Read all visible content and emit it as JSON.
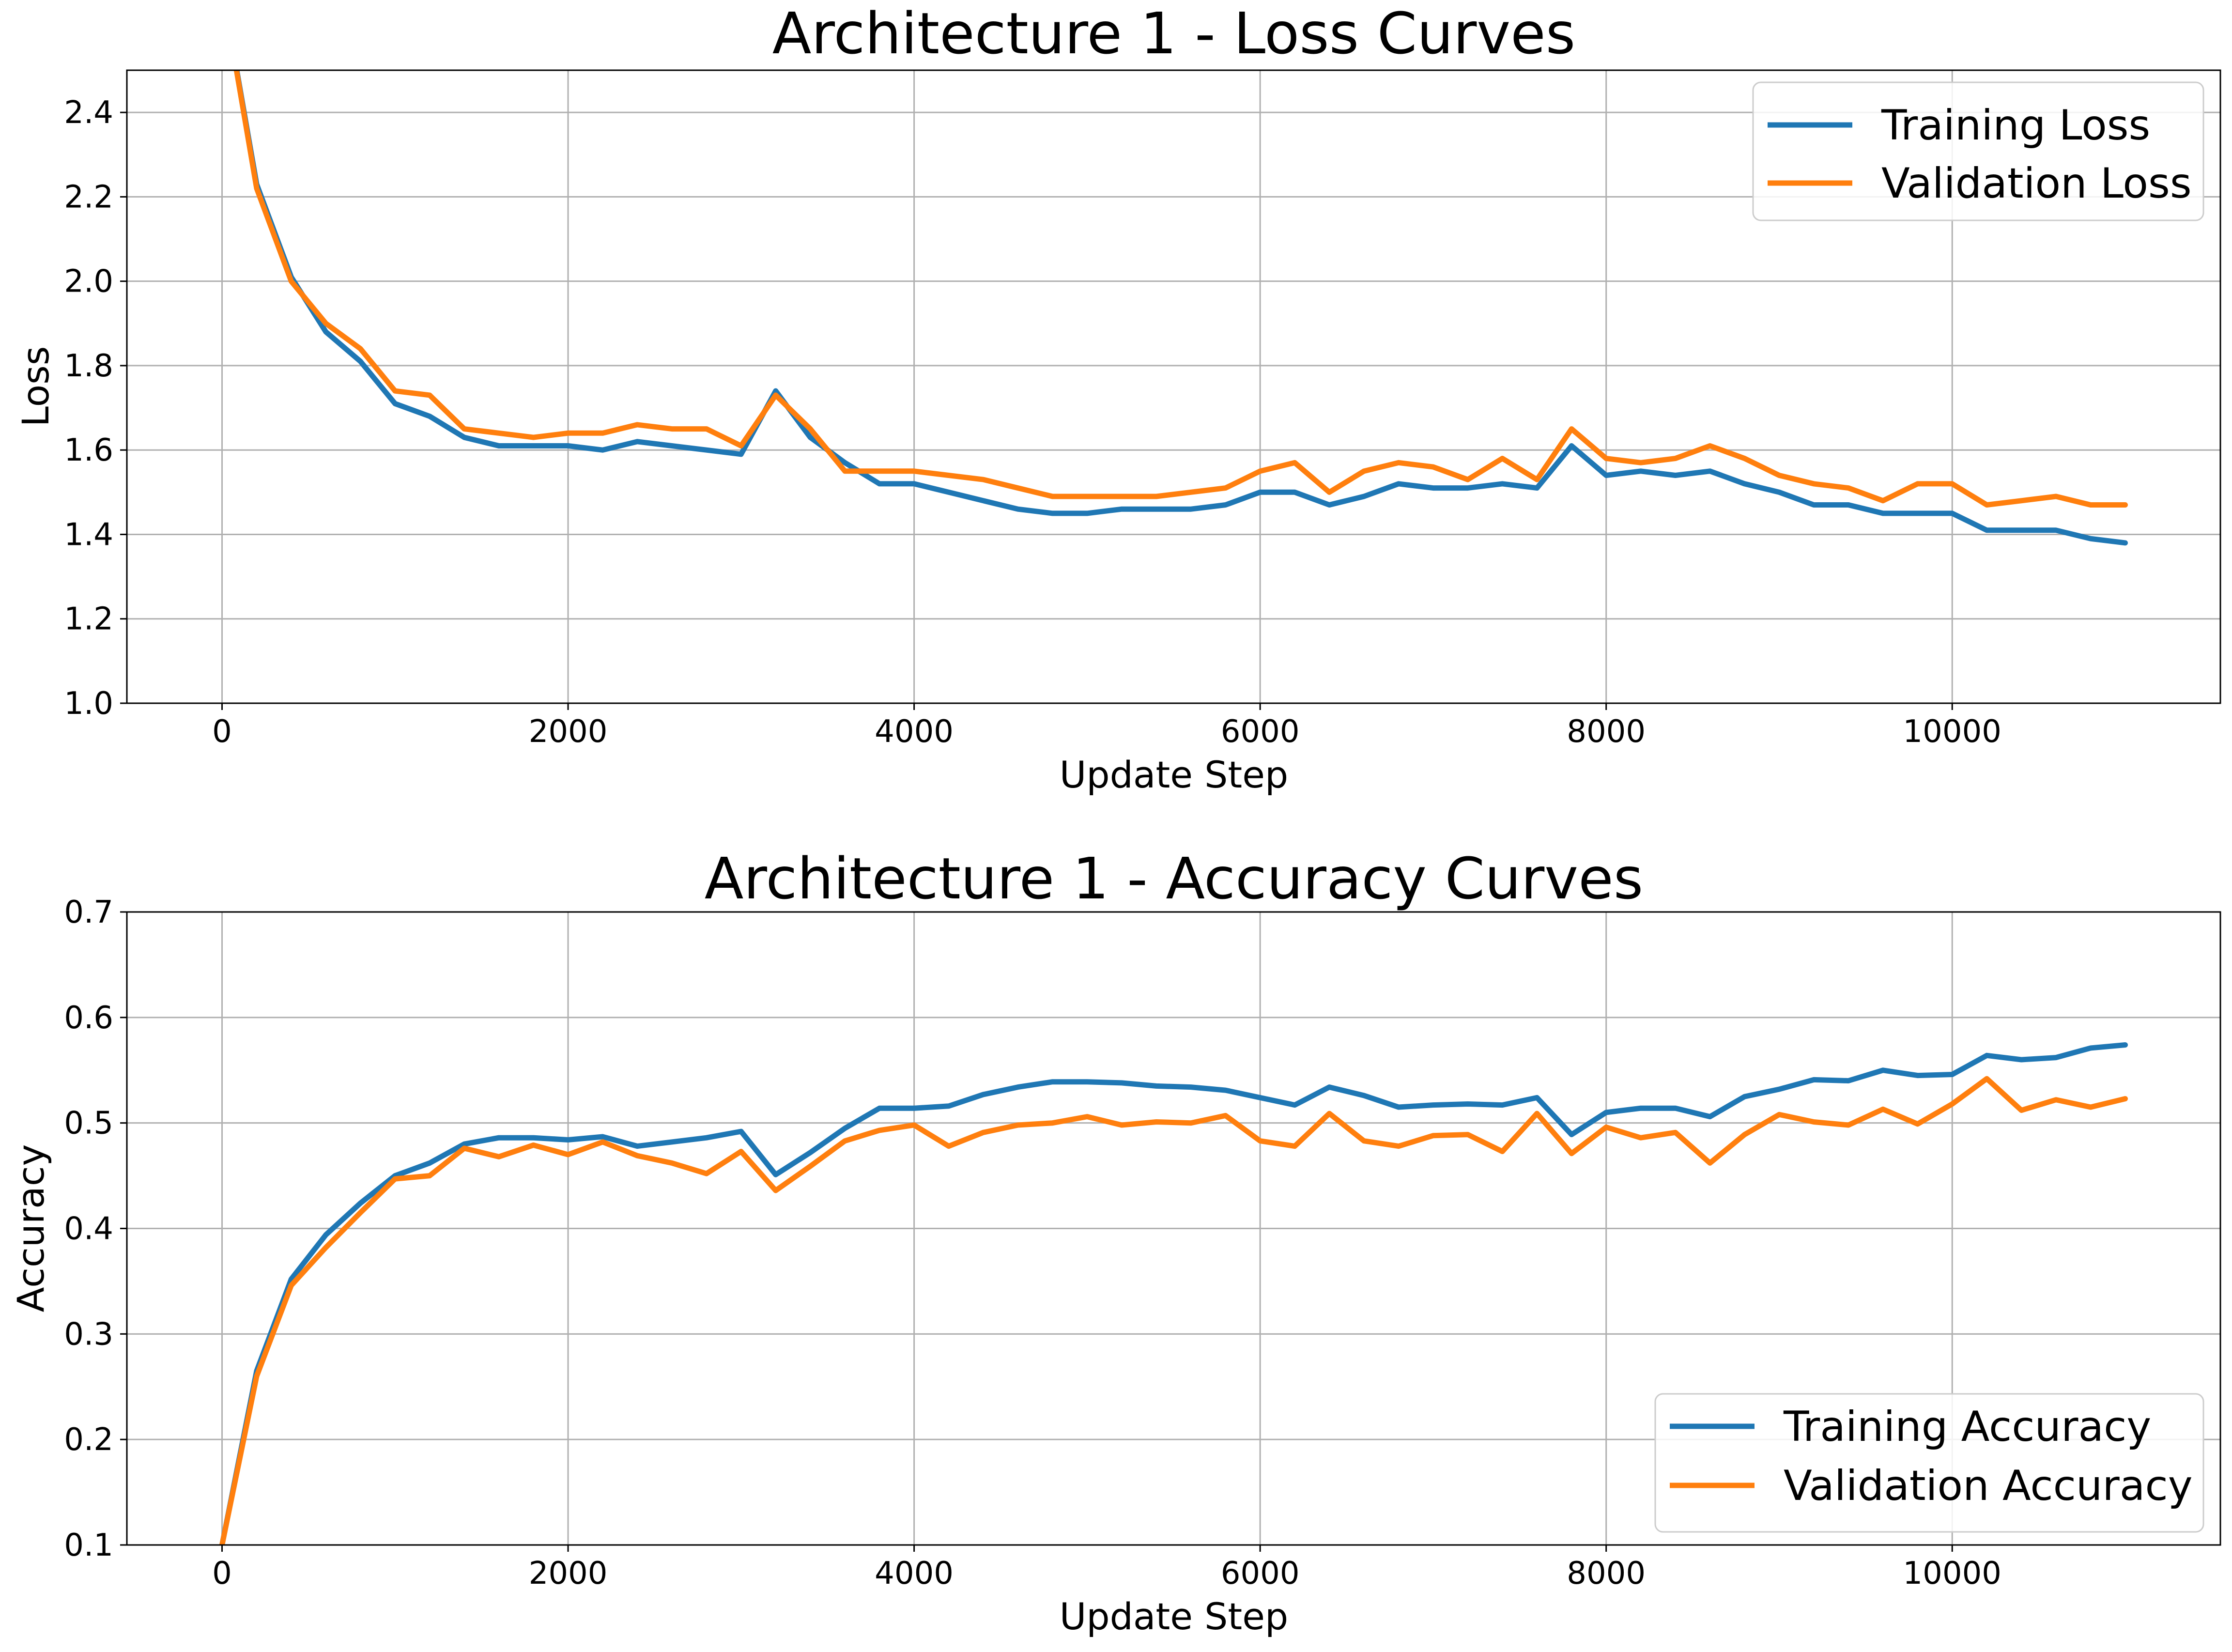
{
  "colors": {
    "training": "#1f77b4",
    "validation": "#ff7f0e",
    "grid": "#b0b0b0"
  },
  "chart_data": [
    {
      "type": "line",
      "title": "Architecture 1 - Loss Curves",
      "xlabel": "Update Step",
      "ylabel": "Loss",
      "xlim": [
        -550,
        11550
      ],
      "ylim": [
        1.0,
        2.5
      ],
      "xticks": [
        0,
        2000,
        4000,
        6000,
        8000,
        10000
      ],
      "yticks": [
        "1.0",
        "1.2",
        "1.4",
        "1.6",
        "1.8",
        "2.0",
        "2.2",
        "2.4"
      ],
      "grid": true,
      "legend_position": "upper right",
      "x": [
        0,
        200,
        400,
        600,
        800,
        1000,
        1200,
        1400,
        1600,
        1800,
        2000,
        2200,
        2400,
        2600,
        2800,
        3000,
        3200,
        3400,
        3600,
        3800,
        4000,
        4200,
        4400,
        4600,
        4800,
        5000,
        5200,
        5400,
        5600,
        5800,
        6000,
        6200,
        6400,
        6600,
        6800,
        7000,
        7200,
        7400,
        7600,
        7800,
        8000,
        8200,
        8400,
        8600,
        8800,
        9000,
        9200,
        9400,
        9600,
        9800,
        10000,
        10200,
        10400,
        10600,
        10800,
        11000
      ],
      "series": [
        {
          "name": "Training Loss",
          "color": "#1f77b4",
          "values": [
            2.7,
            2.23,
            2.01,
            1.88,
            1.81,
            1.71,
            1.68,
            1.63,
            1.61,
            1.61,
            1.61,
            1.6,
            1.62,
            1.61,
            1.6,
            1.59,
            1.74,
            1.63,
            1.57,
            1.52,
            1.52,
            1.5,
            1.48,
            1.46,
            1.45,
            1.45,
            1.46,
            1.46,
            1.46,
            1.47,
            1.5,
            1.5,
            1.47,
            1.49,
            1.52,
            1.51,
            1.51,
            1.52,
            1.51,
            1.61,
            1.54,
            1.55,
            1.54,
            1.55,
            1.52,
            1.5,
            1.47,
            1.47,
            1.45,
            1.45,
            1.45,
            1.41,
            1.41,
            1.41,
            1.39,
            1.38
          ]
        },
        {
          "name": "Validation Loss",
          "color": "#ff7f0e",
          "values": [
            2.7,
            2.22,
            2.0,
            1.9,
            1.84,
            1.74,
            1.73,
            1.65,
            1.64,
            1.63,
            1.64,
            1.64,
            1.66,
            1.65,
            1.65,
            1.61,
            1.73,
            1.65,
            1.55,
            1.55,
            1.55,
            1.54,
            1.53,
            1.51,
            1.49,
            1.49,
            1.49,
            1.49,
            1.5,
            1.51,
            1.55,
            1.57,
            1.5,
            1.55,
            1.57,
            1.56,
            1.53,
            1.58,
            1.53,
            1.65,
            1.58,
            1.57,
            1.58,
            1.61,
            1.58,
            1.54,
            1.52,
            1.51,
            1.48,
            1.52,
            1.52,
            1.47,
            1.48,
            1.49,
            1.47,
            1.47
          ]
        }
      ]
    },
    {
      "type": "line",
      "title": "Architecture 1 - Accuracy Curves",
      "xlabel": "Update Step",
      "ylabel": "Accuracy",
      "xlim": [
        -550,
        11550
      ],
      "ylim": [
        0.1,
        0.7
      ],
      "xticks": [
        0,
        2000,
        4000,
        6000,
        8000,
        10000
      ],
      "yticks": [
        "0.1",
        "0.2",
        "0.3",
        "0.4",
        "0.5",
        "0.6",
        "0.7"
      ],
      "grid": true,
      "legend_position": "lower right",
      "x": [
        0,
        200,
        400,
        600,
        800,
        1000,
        1200,
        1400,
        1600,
        1800,
        2000,
        2200,
        2400,
        2600,
        2800,
        3000,
        3200,
        3400,
        3600,
        3800,
        4000,
        4200,
        4400,
        4600,
        4800,
        5000,
        5200,
        5400,
        5600,
        5800,
        6000,
        6200,
        6400,
        6600,
        6800,
        7000,
        7200,
        7400,
        7600,
        7800,
        8000,
        8200,
        8400,
        8600,
        8800,
        9000,
        9200,
        9400,
        9600,
        9800,
        10000,
        10200,
        10400,
        10600,
        10800,
        11000
      ],
      "series": [
        {
          "name": "Training Accuracy",
          "color": "#1f77b4",
          "values": [
            0.1,
            0.265,
            0.352,
            0.394,
            0.424,
            0.45,
            0.462,
            0.48,
            0.486,
            0.486,
            0.484,
            0.487,
            0.478,
            0.482,
            0.486,
            0.492,
            0.451,
            0.472,
            0.495,
            0.514,
            0.514,
            0.516,
            0.527,
            0.534,
            0.539,
            0.539,
            0.538,
            0.535,
            0.534,
            0.531,
            0.524,
            0.517,
            0.534,
            0.526,
            0.515,
            0.517,
            0.518,
            0.517,
            0.524,
            0.489,
            0.51,
            0.514,
            0.514,
            0.506,
            0.525,
            0.532,
            0.541,
            0.54,
            0.55,
            0.545,
            0.546,
            0.564,
            0.56,
            0.562,
            0.571,
            0.574
          ]
        },
        {
          "name": "Validation Accuracy",
          "color": "#ff7f0e",
          "values": [
            0.1,
            0.26,
            0.346,
            0.382,
            0.415,
            0.447,
            0.45,
            0.476,
            0.468,
            0.479,
            0.47,
            0.482,
            0.469,
            0.462,
            0.452,
            0.473,
            0.436,
            0.459,
            0.483,
            0.493,
            0.498,
            0.478,
            0.491,
            0.498,
            0.5,
            0.506,
            0.498,
            0.501,
            0.5,
            0.507,
            0.483,
            0.478,
            0.509,
            0.483,
            0.478,
            0.488,
            0.489,
            0.473,
            0.509,
            0.471,
            0.496,
            0.486,
            0.491,
            0.462,
            0.489,
            0.508,
            0.501,
            0.498,
            0.513,
            0.499,
            0.518,
            0.542,
            0.512,
            0.522,
            0.515,
            0.523
          ]
        }
      ]
    }
  ]
}
